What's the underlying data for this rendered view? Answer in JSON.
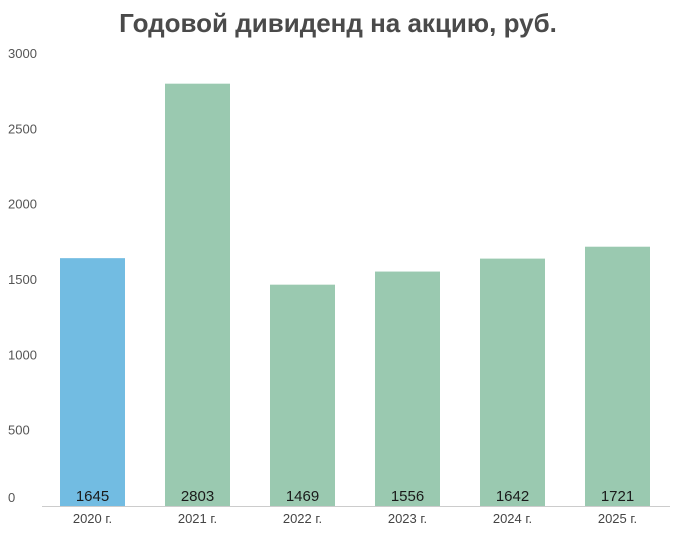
{
  "chart_data": {
    "type": "bar",
    "title": "Годовой дивиденд на акцию, руб.",
    "categories": [
      "2020 г.",
      "2021 г.",
      "2022 г.",
      "2023 г.",
      "2024 г.",
      "2025 г."
    ],
    "values": [
      1645,
      2803,
      1469,
      1556,
      1642,
      1721
    ],
    "data_labels": [
      "1645",
      "2803",
      "1469",
      "1556",
      "1642",
      "1721"
    ],
    "ylim": [
      0,
      3000
    ],
    "y_ticks": [
      0,
      500,
      1000,
      1500,
      2000,
      2500,
      3000
    ],
    "y_tick_labels": [
      "0",
      "500",
      "1000",
      "1500",
      "2000",
      "2500",
      "3000"
    ],
    "xlabel": "",
    "ylabel": "",
    "grid": false,
    "legend": "none",
    "colors": {
      "first_bar": "#72bce2",
      "other_bars": "#9ac9b0",
      "axis": "#cccccc",
      "title": "#4a4a4a"
    }
  }
}
